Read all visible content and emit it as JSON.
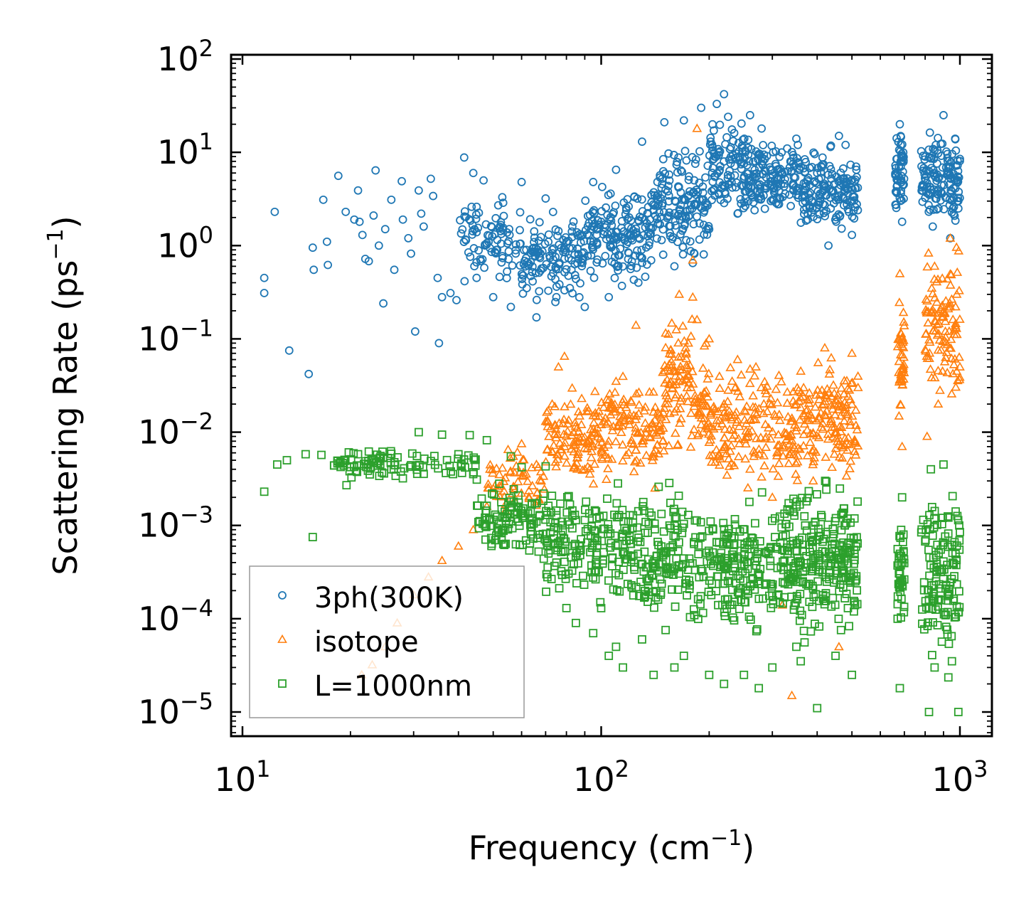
{
  "chart_data": {
    "type": "scatter",
    "xscale": "log",
    "yscale": "log",
    "xlabel": "Frequency (cm",
    "xlabel_sup": "−1",
    "xlabel_tail": ")",
    "ylabel": "Scattering Rate (ps",
    "ylabel_sup": "−1",
    "ylabel_tail": ")",
    "xlim": [
      10,
      1000
    ],
    "ylim": [
      1e-05,
      100
    ],
    "legend_position": "lower-left",
    "x_ticks": [
      {
        "value": 10,
        "base": "10",
        "exp": "1"
      },
      {
        "value": 100,
        "base": "10",
        "exp": "2"
      },
      {
        "value": 1000,
        "base": "10",
        "exp": "3"
      }
    ],
    "y_ticks": [
      {
        "value": 100,
        "base": "10",
        "exp": "2"
      },
      {
        "value": 10,
        "base": "10",
        "exp": "1"
      },
      {
        "value": 1,
        "base": "10",
        "exp": "0"
      },
      {
        "value": 0.1,
        "base": "10",
        "exp": "−1"
      },
      {
        "value": 0.01,
        "base": "10",
        "exp": "−2"
      },
      {
        "value": 0.001,
        "base": "10",
        "exp": "−3"
      },
      {
        "value": 0.0001,
        "base": "10",
        "exp": "−4"
      },
      {
        "value": 1e-05,
        "base": "10",
        "exp": "−5"
      }
    ],
    "series": [
      {
        "name": "3ph(300K)",
        "color": "#1f77b4",
        "marker": "circle",
        "points": [
          [
            11.5,
            0.45
          ],
          [
            11.5,
            0.31
          ],
          [
            12.3,
            2.3
          ],
          [
            13.5,
            0.075
          ],
          [
            15.3,
            0.042
          ],
          [
            15.7,
            0.95
          ],
          [
            15.8,
            0.55
          ],
          [
            16.8,
            3.1
          ],
          [
            17.2,
            1.1
          ],
          [
            17.3,
            0.62
          ],
          [
            18.5,
            5.6
          ],
          [
            19.4,
            2.3
          ],
          [
            20.5,
            1.9
          ],
          [
            21.0,
            3.9
          ],
          [
            21.2,
            1.8
          ],
          [
            21.6,
            1.3
          ],
          [
            22.0,
            0.72
          ],
          [
            22.5,
            0.68
          ],
          [
            23.5,
            6.4
          ],
          [
            23.2,
            2.1
          ],
          [
            24.0,
            1.0
          ],
          [
            24.7,
            0.24
          ],
          [
            25.0,
            1.5
          ],
          [
            26.0,
            3.1
          ],
          [
            26.5,
            0.55
          ],
          [
            27.8,
            4.9
          ],
          [
            28.0,
            1.9
          ],
          [
            29.0,
            1.2
          ],
          [
            29.5,
            0.82
          ],
          [
            30.3,
            0.12
          ],
          [
            31.0,
            3.9
          ],
          [
            31.5,
            2.2
          ],
          [
            32.0,
            1.6
          ],
          [
            33.5,
            5.2
          ],
          [
            34.0,
            3.4
          ],
          [
            35.0,
            0.45
          ],
          [
            35.3,
            0.09
          ],
          [
            36.0,
            0.28
          ],
          [
            38.0,
            0.31
          ],
          [
            39.5,
            0.26
          ],
          [
            41.5,
            8.8
          ],
          [
            44.0,
            6.0
          ],
          [
            47.0,
            5.0
          ],
          [
            50.0,
            0.28
          ],
          [
            53.0,
            3.3
          ],
          [
            56.0,
            0.22
          ],
          [
            60.0,
            4.8
          ],
          [
            62.0,
            0.35
          ],
          [
            66.0,
            0.17
          ],
          [
            70.0,
            3.2
          ],
          [
            75.0,
            0.28
          ],
          [
            80.0,
            1.1
          ],
          [
            85.0,
            0.44
          ],
          [
            90.0,
            0.22
          ],
          [
            95.0,
            4.8
          ],
          [
            100.0,
            1.8
          ],
          [
            105.0,
            0.28
          ],
          [
            110.0,
            6.5
          ],
          [
            120.0,
            1.3
          ],
          [
            130.0,
            13
          ],
          [
            140.0,
            2.4
          ],
          [
            150.0,
            21
          ],
          [
            160.0,
            0.6
          ],
          [
            170.0,
            22
          ],
          [
            180.0,
            0.65
          ],
          [
            190.0,
            30
          ],
          [
            200.0,
            1.5
          ],
          [
            210.0,
            33
          ],
          [
            220.0,
            42
          ],
          [
            230.0,
            9
          ],
          [
            240.0,
            2.2
          ],
          [
            260.0,
            25
          ],
          [
            280.0,
            18
          ],
          [
            300.0,
            3.1
          ],
          [
            330.0,
            11
          ],
          [
            350.0,
            14
          ],
          [
            380.0,
            2.7
          ],
          [
            400.0,
            6
          ],
          [
            430.0,
            1.0
          ],
          [
            460.0,
            15
          ],
          [
            480.0,
            12
          ],
          [
            500.0,
            1.3
          ],
          [
            510.0,
            4.1
          ],
          [
            680.0,
            20
          ],
          [
            690.0,
            1.8
          ],
          [
            800.0,
            9
          ],
          [
            840.0,
            1.6
          ],
          [
            900.0,
            25
          ],
          [
            940.0,
            1.2
          ],
          [
            970.0,
            14
          ],
          [
            990.0,
            2.5
          ],
          [
            1000.0,
            8.5
          ]
        ],
        "bands": [
          {
            "x": [
              40,
              60
            ],
            "y": [
              0.3,
              4
            ],
            "n": 90
          },
          {
            "x": [
              60,
              90
            ],
            "y": [
              0.2,
              3
            ],
            "n": 130
          },
          {
            "x": [
              90,
              140
            ],
            "y": [
              0.3,
              6
            ],
            "n": 170
          },
          {
            "x": [
              140,
              200
            ],
            "y": [
              0.5,
              15
            ],
            "n": 150
          },
          {
            "x": [
              200,
              260
            ],
            "y": [
              1.2,
              30
            ],
            "n": 120
          },
          {
            "x": [
              260,
              360
            ],
            "y": [
              1.5,
              18
            ],
            "n": 140
          },
          {
            "x": [
              360,
              520
            ],
            "y": [
              1.0,
              14
            ],
            "n": 160
          },
          {
            "x": [
              660,
              700
            ],
            "y": [
              1.8,
              20
            ],
            "n": 60
          },
          {
            "x": [
              780,
              1000
            ],
            "y": [
              1.2,
              25
            ],
            "n": 140
          }
        ]
      },
      {
        "name": "isotope",
        "color": "#ff7f0e",
        "marker": "triangle",
        "points": [
          [
            21.5,
            2.5e-05
          ],
          [
            23.0,
            3.2e-05
          ],
          [
            25.0,
            5e-05
          ],
          [
            27.0,
            9e-05
          ],
          [
            30.0,
            0.00018
          ],
          [
            33.0,
            0.00028
          ],
          [
            36.0,
            0.00042
          ],
          [
            40.0,
            0.0006
          ],
          [
            44.0,
            0.0009
          ],
          [
            48.0,
            0.0016
          ],
          [
            52.0,
            0.0035
          ],
          [
            55.0,
            0.0065
          ],
          [
            60.0,
            0.0075
          ],
          [
            66.0,
            0.0045
          ],
          [
            70.0,
            0.013
          ],
          [
            73.0,
            0.02
          ],
          [
            76.0,
            0.05
          ],
          [
            79.0,
            0.065
          ],
          [
            85.0,
            0.008
          ],
          [
            90.0,
            0.004
          ],
          [
            95.0,
            0.015
          ],
          [
            100.0,
            0.012
          ],
          [
            105.0,
            0.022
          ],
          [
            110.0,
            0.035
          ],
          [
            120.0,
            0.014
          ],
          [
            125.0,
            0.14
          ],
          [
            130.0,
            0.008
          ],
          [
            140.0,
            0.006
          ],
          [
            150.0,
            0.018
          ],
          [
            160.0,
            0.045
          ],
          [
            165.0,
            0.3
          ],
          [
            175.0,
            0.09
          ],
          [
            180.0,
            0.28
          ],
          [
            185.0,
            18
          ],
          [
            180.0,
            0.7
          ],
          [
            190.0,
            0.012
          ],
          [
            200.0,
            0.1
          ],
          [
            220.0,
            0.02
          ],
          [
            240.0,
            0.06
          ],
          [
            260.0,
            0.004
          ],
          [
            270.0,
            0.05
          ],
          [
            300.0,
            0.002
          ],
          [
            320.0,
            0.00014
          ],
          [
            340.0,
            1.5e-05
          ],
          [
            360.0,
            0.045
          ],
          [
            390.0,
            0.003
          ],
          [
            420.0,
            0.08
          ],
          [
            460.0,
            5e-05
          ],
          [
            500.0,
            0.07
          ],
          [
            520.0,
            0.03
          ],
          [
            680.0,
            0.5
          ],
          [
            690.0,
            0.007
          ],
          [
            690.0,
            0.1
          ],
          [
            810.0,
            0.009
          ],
          [
            850.0,
            0.6
          ],
          [
            870.0,
            0.02
          ],
          [
            940.0,
            1.2
          ],
          [
            980.0,
            0.3
          ],
          [
            1000.0,
            0.05
          ]
        ],
        "bands": [
          {
            "x": [
              48,
              70
            ],
            "y": [
              0.001,
              0.008
            ],
            "n": 60
          },
          {
            "x": [
              70,
              100
            ],
            "y": [
              0.002,
              0.04
            ],
            "n": 110
          },
          {
            "x": [
              100,
              150
            ],
            "y": [
              0.002,
              0.06
            ],
            "n": 130
          },
          {
            "x": [
              150,
              200
            ],
            "y": [
              0.004,
              0.25
            ],
            "n": 120
          },
          {
            "x": [
              200,
              300
            ],
            "y": [
              0.002,
              0.08
            ],
            "n": 130
          },
          {
            "x": [
              300,
              400
            ],
            "y": [
              0.002,
              0.07
            ],
            "n": 100
          },
          {
            "x": [
              400,
              520
            ],
            "y": [
              0.002,
              0.08
            ],
            "n": 110
          },
          {
            "x": [
              670,
              700
            ],
            "y": [
              0.01,
              0.4
            ],
            "n": 40
          },
          {
            "x": [
              800,
              1000
            ],
            "y": [
              0.01,
              1.5
            ],
            "n": 110
          }
        ]
      },
      {
        "name": "L=1000nm",
        "color": "#2ca02c",
        "marker": "square",
        "points": [
          [
            11.5,
            0.0023
          ],
          [
            12.5,
            0.0045
          ],
          [
            13.3,
            0.005
          ],
          [
            15.0,
            0.0058
          ],
          [
            15.7,
            0.00075
          ],
          [
            16.6,
            0.0057
          ],
          [
            18.0,
            0.0044
          ],
          [
            19.5,
            0.0027
          ],
          [
            21.0,
            0.0058
          ],
          [
            22.5,
            0.0062
          ],
          [
            24.0,
            0.0049
          ],
          [
            26.0,
            0.004
          ],
          [
            28.0,
            0.0032
          ],
          [
            31.0,
            0.01
          ],
          [
            33.5,
            0.0049
          ],
          [
            36.0,
            0.0094
          ],
          [
            40.0,
            0.0058
          ],
          [
            43.0,
            0.0093
          ],
          [
            45.0,
            0.0031
          ],
          [
            48.0,
            0.0082
          ],
          [
            52.0,
            0.0028
          ],
          [
            56.0,
            0.0055
          ],
          [
            60.0,
            0.0042
          ],
          [
            66.0,
            0.0011
          ],
          [
            70.0,
            0.0043
          ],
          [
            75.0,
            0.0004
          ],
          [
            80.0,
            0.00013
          ],
          [
            85.0,
            9e-05
          ],
          [
            95.0,
            7e-05
          ],
          [
            105.0,
            4e-05
          ],
          [
            110.0,
            5e-05
          ],
          [
            115.0,
            3e-05
          ],
          [
            130.0,
            6e-05
          ],
          [
            140.0,
            2.5e-05
          ],
          [
            160.0,
            3e-05
          ],
          [
            170.0,
            4e-05
          ],
          [
            200.0,
            2.5e-05
          ],
          [
            220.0,
            2e-05
          ],
          [
            250.0,
            2.5e-05
          ],
          [
            275.0,
            1.8e-05
          ],
          [
            300.0,
            3e-05
          ],
          [
            350.0,
            5e-05
          ],
          [
            360.0,
            3.5e-05
          ],
          [
            400.0,
            1.1e-05
          ],
          [
            450.0,
            4e-05
          ],
          [
            500.0,
            2.5e-05
          ],
          [
            510.0,
            0.00014
          ],
          [
            680.0,
            1.8e-05
          ],
          [
            690.0,
            0.002
          ],
          [
            820.0,
            1e-05
          ],
          [
            830.0,
            0.004
          ],
          [
            850.0,
            3e-05
          ],
          [
            900.0,
            0.0045
          ],
          [
            950.0,
            3.5e-05
          ],
          [
            990.0,
            1e-05
          ],
          [
            1000.0,
            0.00085
          ]
        ],
        "bands": [
          {
            "x": [
              18,
              45
            ],
            "y": [
              0.003,
              0.007
            ],
            "n": 90
          },
          {
            "x": [
              45,
              70
            ],
            "y": [
              0.0003,
              0.004
            ],
            "n": 110
          },
          {
            "x": [
              70,
              120
            ],
            "y": [
              0.0001,
              0.004
            ],
            "n": 170
          },
          {
            "x": [
              120,
              200
            ],
            "y": [
              5e-05,
              0.004
            ],
            "n": 170
          },
          {
            "x": [
              200,
              320
            ],
            "y": [
              4e-05,
              0.003
            ],
            "n": 170
          },
          {
            "x": [
              320,
              420
            ],
            "y": [
              4e-05,
              0.005
            ],
            "n": 140
          },
          {
            "x": [
              420,
              520
            ],
            "y": [
              5e-05,
              0.004
            ],
            "n": 120
          },
          {
            "x": [
              670,
              700
            ],
            "y": [
              8e-05,
              0.0013
            ],
            "n": 40
          },
          {
            "x": [
              780,
              1000
            ],
            "y": [
              2e-05,
              0.004
            ],
            "n": 130
          }
        ]
      }
    ]
  }
}
